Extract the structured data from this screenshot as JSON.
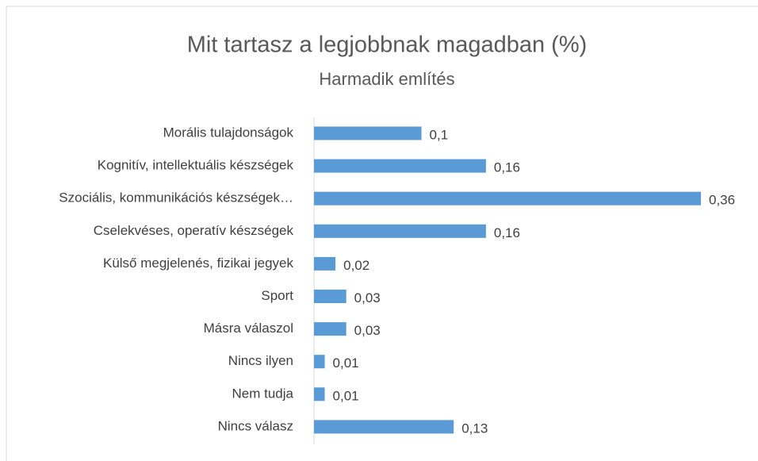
{
  "chart_data": {
    "type": "bar",
    "orientation": "horizontal",
    "title": "Mit tartasz a legjobbnak magadban (%)",
    "subtitle": "Harmadik említés",
    "categories": [
      "Morális tulajdonságok",
      "Kognitív, intellektuális készségek",
      "Szociális, kommunikációs készségek…",
      "Cselekvéses, operatív készségek",
      "Külső megjelenés, fizikai jegyek",
      "Sport",
      "Másra válaszol",
      "Nincs ilyen",
      "Nem tudja",
      "Nincs válasz"
    ],
    "values": [
      0.1,
      0.16,
      0.36,
      0.16,
      0.02,
      0.03,
      0.03,
      0.01,
      0.01,
      0.13
    ],
    "value_labels": [
      "0,1",
      "0,16",
      "0,36",
      "0,16",
      "0,02",
      "0,03",
      "0,03",
      "0,01",
      "0,01",
      "0,13"
    ],
    "color": "#5b9bd5",
    "xlim": [
      0,
      0.36
    ]
  }
}
